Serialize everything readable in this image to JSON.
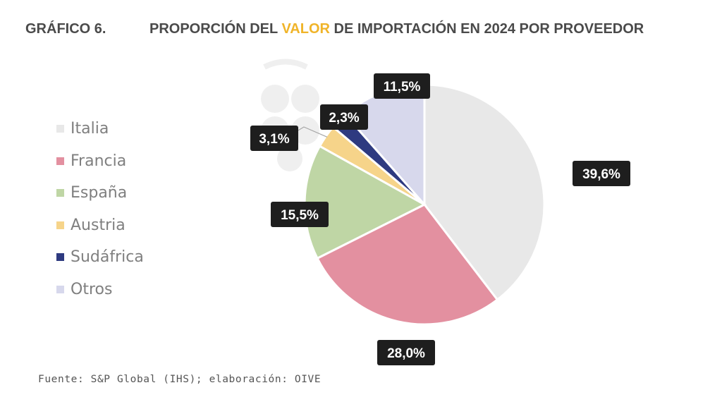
{
  "header": {
    "number": "GRÁFICO 6.",
    "title_pre": "PROPORCIÓN DEL ",
    "title_accent": "VALOR",
    "title_post": " DE IMPORTACIÓN EN 2024 POR PROVEEDOR"
  },
  "footer": {
    "source": "Fuente: S&P Global (IHS); elaboración: OIVE"
  },
  "colors": {
    "title_accent": "#f0b429",
    "label_bg": "#1e1e1e",
    "label_text": "#ffffff"
  },
  "chart_data": {
    "type": "pie",
    "title": "PROPORCIÓN DEL VALOR DE IMPORTACIÓN EN 2024 POR PROVEEDOR",
    "start": "top",
    "direction": "clockwise",
    "legend_position": "left",
    "categories": [
      "Italia",
      "Francia",
      "España",
      "Austria",
      "Sudáfrica",
      "Otros"
    ],
    "values": [
      39.6,
      28.0,
      15.5,
      3.1,
      2.3,
      11.5
    ],
    "value_labels": [
      "39,6%",
      "28,0%",
      "15,5%",
      "3,1%",
      "2,3%",
      "11,5%"
    ],
    "colors": [
      "#e8e8e8",
      "#e390a0",
      "#bfd6a5",
      "#f6d48a",
      "#2e3a80",
      "#d7d8ec"
    ]
  }
}
